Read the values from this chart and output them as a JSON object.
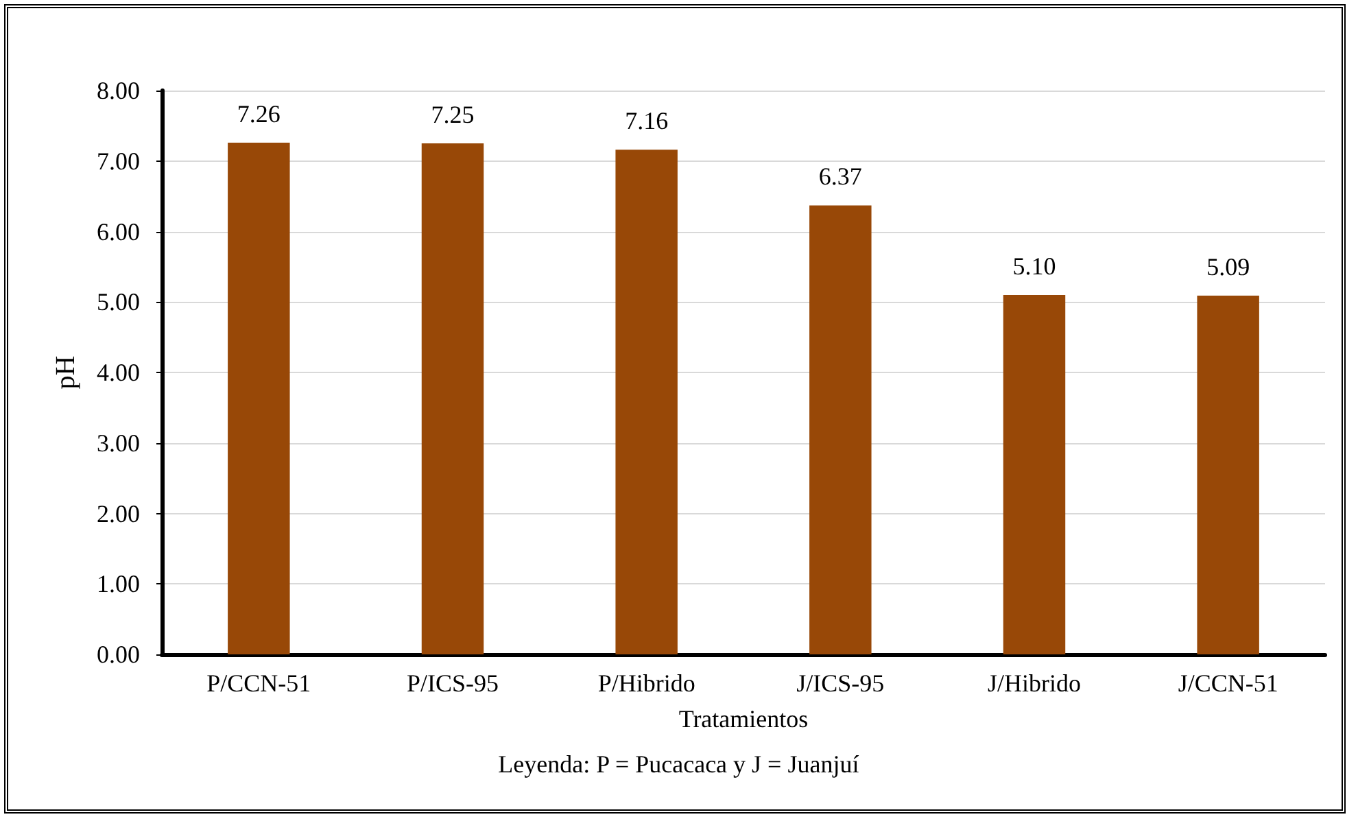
{
  "chart_data": {
    "type": "bar",
    "xlabel": "Tratamientos",
    "ylabel": "pH",
    "annotations": [
      "Leyenda: P = Pucacaca y J = Juanjuí"
    ],
    "categories": [
      "P/CCN-51",
      "P/ICS-95",
      "P/Hibrido",
      "J/ICS-95",
      "J/Hibrido",
      "J/CCN-51"
    ],
    "values": [
      7.26,
      7.25,
      7.16,
      6.37,
      5.1,
      5.09
    ],
    "value_labels": [
      "7.26",
      "7.25",
      "7.16",
      "6.37",
      "5.10",
      "5.09"
    ],
    "color": "#984807",
    "ylim": [
      0,
      8
    ],
    "yticks": [
      {
        "value": 0,
        "label": "0.00"
      },
      {
        "value": 1,
        "label": "1.00"
      },
      {
        "value": 2,
        "label": "2.00"
      },
      {
        "value": 3,
        "label": "3.00"
      },
      {
        "value": 4,
        "label": "4.00"
      },
      {
        "value": 5,
        "label": "5.00"
      },
      {
        "value": 6,
        "label": "6.00"
      },
      {
        "value": 7,
        "label": "7.00"
      },
      {
        "value": 8,
        "label": "8.00"
      }
    ],
    "grid": "y"
  }
}
